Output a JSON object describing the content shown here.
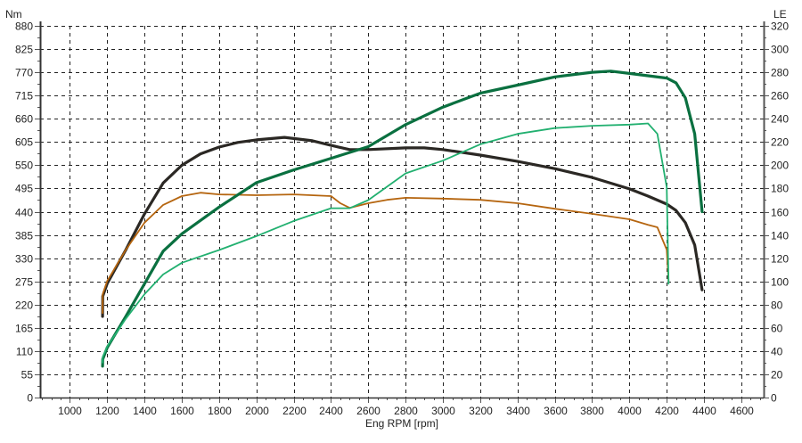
{
  "chart_data": {
    "type": "line",
    "title": "",
    "xlabel": "Eng RPM [rpm]",
    "ylabel_left": "Nm",
    "ylabel_right": "LE",
    "xlim": [
      840,
      4720
    ],
    "ylim_left": [
      0,
      880
    ],
    "ylim_right": [
      0,
      320
    ],
    "x_ticks": [
      1000,
      1200,
      1400,
      1600,
      1800,
      2000,
      2200,
      2400,
      2600,
      2800,
      3000,
      3200,
      3400,
      3600,
      3800,
      4000,
      4200,
      4400,
      4600
    ],
    "y_ticks_left": [
      0,
      55,
      110,
      165,
      220,
      275,
      330,
      385,
      440,
      495,
      550,
      605,
      660,
      715,
      770,
      825,
      880
    ],
    "y_ticks_right": [
      0,
      20,
      40,
      60,
      80,
      100,
      120,
      140,
      160,
      180,
      200,
      220,
      240,
      260,
      280,
      300,
      320
    ],
    "grid": true,
    "series": [
      {
        "axis": "left",
        "color": "#2b2824",
        "width": 3.2,
        "x": [
          1175,
          1176,
          1200,
          1300,
          1400,
          1500,
          1600,
          1700,
          1800,
          1900,
          2000,
          2150,
          2300,
          2400,
          2500,
          2600,
          2800,
          2900,
          3000,
          3200,
          3400,
          3600,
          3800,
          4000,
          4100,
          4200,
          4250,
          4300,
          4350,
          4390
        ],
        "y": [
          192,
          240,
          270,
          350,
          435,
          508,
          550,
          577,
          593,
          604,
          610,
          616,
          608,
          597,
          587,
          587,
          591,
          591,
          587,
          574,
          559,
          542,
          521,
          494,
          477,
          458,
          443,
          414,
          361,
          255
        ]
      },
      {
        "axis": "left",
        "color": "#b5650f",
        "width": 1.8,
        "x": [
          1175,
          1176,
          1200,
          1300,
          1400,
          1500,
          1600,
          1700,
          1800,
          2000,
          2200,
          2400,
          2450,
          2500,
          2600,
          2700,
          2800,
          3000,
          3200,
          3400,
          3600,
          3800,
          4000,
          4100,
          4150,
          4200,
          4210
        ],
        "y": [
          200,
          245,
          276,
          350,
          414,
          456,
          477,
          485,
          481,
          479,
          481,
          477,
          460,
          449,
          460,
          468,
          473,
          471,
          468,
          460,
          447,
          435,
          422,
          409,
          403,
          350,
          274
        ]
      },
      {
        "axis": "right",
        "color": "#0a7040",
        "width": 3.2,
        "x": [
          1175,
          1176,
          1200,
          1300,
          1400,
          1500,
          1600,
          1800,
          2000,
          2200,
          2400,
          2600,
          2800,
          3000,
          3200,
          3400,
          3600,
          3800,
          3900,
          4000,
          4200,
          4250,
          4300,
          4350,
          4390
        ],
        "y": [
          27,
          33,
          43,
          70,
          98,
          126,
          141,
          164,
          185,
          196,
          206,
          216,
          235,
          250,
          262,
          269,
          276,
          280,
          281,
          279,
          275,
          271,
          258,
          227,
          160
        ]
      },
      {
        "axis": "right",
        "color": "#22b070",
        "width": 1.8,
        "x": [
          1175,
          1176,
          1200,
          1300,
          1400,
          1500,
          1600,
          1800,
          2000,
          2200,
          2400,
          2500,
          2600,
          2800,
          3000,
          3200,
          3400,
          3600,
          3800,
          4000,
          4100,
          4150,
          4200,
          4210
        ],
        "y": [
          30,
          35,
          44,
          68,
          89,
          106,
          116,
          127,
          139,
          152,
          163,
          163,
          170,
          193,
          204,
          218,
          227,
          232,
          234,
          235,
          236,
          227,
          181,
          98
        ]
      }
    ]
  }
}
